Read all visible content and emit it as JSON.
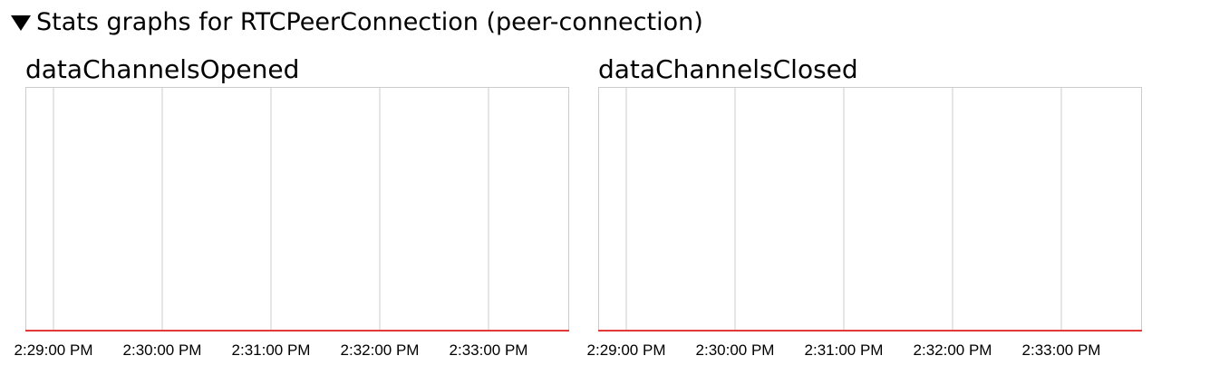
{
  "section": {
    "label": "Stats graphs for RTCPeerConnection (peer-connection)",
    "expanded": true
  },
  "graphs": [
    {
      "title": "dataChannelsOpened",
      "time_labels": [
        "2:29:00 PM",
        "2:30:00 PM",
        "2:31:00 PM",
        "2:32:00 PM",
        "2:33:00 PM"
      ]
    },
    {
      "title": "dataChannelsClosed",
      "time_labels": [
        "2:29:00 PM",
        "2:30:00 PM",
        "2:31:00 PM",
        "2:32:00 PM",
        "2:33:00 PM"
      ]
    }
  ],
  "colors": {
    "grid": "#cccccc",
    "line": "#e53935",
    "text": "#000000"
  }
}
